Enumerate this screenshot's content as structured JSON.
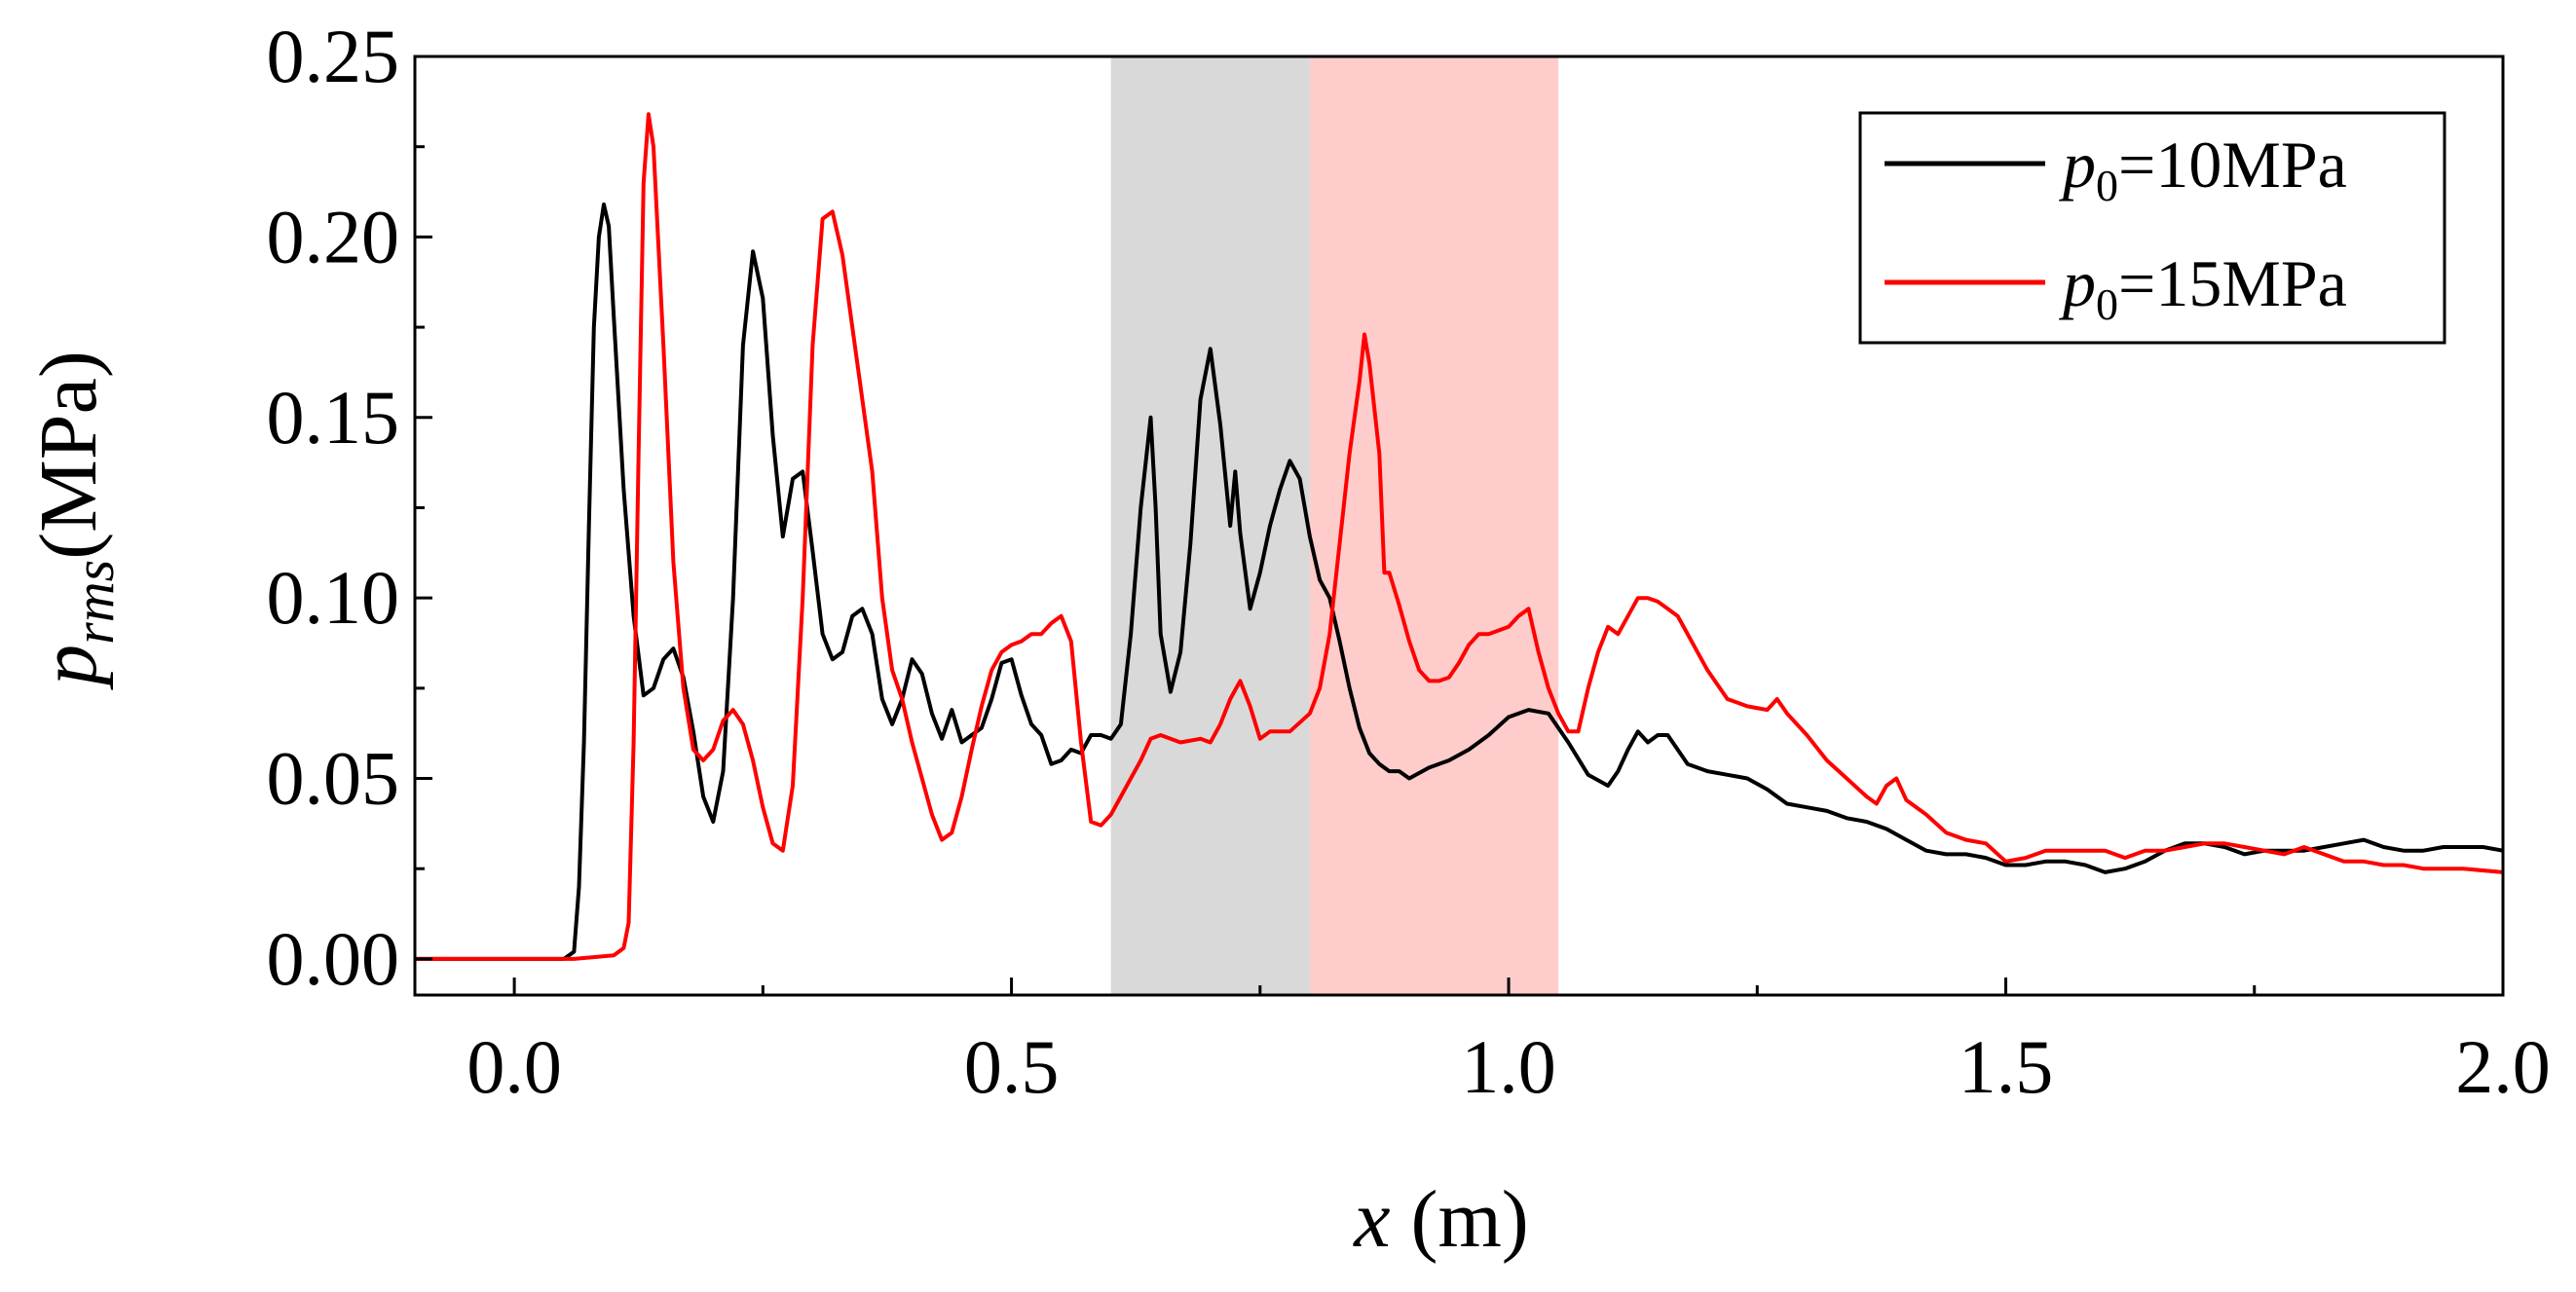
{
  "chart_data": {
    "type": "line",
    "title": "",
    "xlabel": {
      "var": "x",
      "unit": " (m)"
    },
    "ylabel": {
      "var": "p",
      "sub": "rms",
      "unit": "(MPa)"
    },
    "xlim": [
      -0.1,
      2.0
    ],
    "ylim": [
      -0.01,
      0.25
    ],
    "x_ticks": [
      0.0,
      0.5,
      1.0,
      1.5,
      2.0
    ],
    "x_tick_labels": [
      "0.0",
      "0.5",
      "1.0",
      "1.5",
      "2.0"
    ],
    "y_ticks": [
      0.0,
      0.05,
      0.1,
      0.15,
      0.2,
      0.25
    ],
    "y_tick_labels": [
      "0.00",
      "0.05",
      "0.10",
      "0.15",
      "0.20",
      "0.25"
    ],
    "grid": false,
    "legend_position": "top-right",
    "shaded_regions": [
      {
        "x_start": 0.6,
        "x_end": 0.8,
        "color": "#d9d9d9"
      },
      {
        "x_start": 0.8,
        "x_end": 1.05,
        "color": "#ffcccc"
      }
    ],
    "series": [
      {
        "name": "p0=10MPa",
        "legend": {
          "var": "p",
          "sub": "0",
          "rest": "=10MPa"
        },
        "color": "#000000",
        "points": [
          [
            -0.1,
            0
          ],
          [
            0.05,
            0
          ],
          [
            0.06,
            0.002
          ],
          [
            0.065,
            0.02
          ],
          [
            0.07,
            0.06
          ],
          [
            0.075,
            0.12
          ],
          [
            0.08,
            0.175
          ],
          [
            0.085,
            0.2
          ],
          [
            0.09,
            0.209
          ],
          [
            0.095,
            0.203
          ],
          [
            0.1,
            0.178
          ],
          [
            0.11,
            0.13
          ],
          [
            0.12,
            0.095
          ],
          [
            0.13,
            0.073
          ],
          [
            0.14,
            0.075
          ],
          [
            0.15,
            0.083
          ],
          [
            0.16,
            0.086
          ],
          [
            0.17,
            0.078
          ],
          [
            0.18,
            0.063
          ],
          [
            0.19,
            0.045
          ],
          [
            0.2,
            0.038
          ],
          [
            0.21,
            0.052
          ],
          [
            0.22,
            0.1
          ],
          [
            0.23,
            0.17
          ],
          [
            0.24,
            0.196
          ],
          [
            0.25,
            0.183
          ],
          [
            0.26,
            0.145
          ],
          [
            0.27,
            0.117
          ],
          [
            0.28,
            0.133
          ],
          [
            0.29,
            0.135
          ],
          [
            0.3,
            0.113
          ],
          [
            0.31,
            0.09
          ],
          [
            0.32,
            0.083
          ],
          [
            0.33,
            0.085
          ],
          [
            0.34,
            0.095
          ],
          [
            0.35,
            0.097
          ],
          [
            0.36,
            0.09
          ],
          [
            0.37,
            0.072
          ],
          [
            0.38,
            0.065
          ],
          [
            0.39,
            0.072
          ],
          [
            0.4,
            0.083
          ],
          [
            0.41,
            0.079
          ],
          [
            0.42,
            0.068
          ],
          [
            0.43,
            0.061
          ],
          [
            0.44,
            0.069
          ],
          [
            0.45,
            0.06
          ],
          [
            0.46,
            0.062
          ],
          [
            0.47,
            0.064
          ],
          [
            0.48,
            0.072
          ],
          [
            0.49,
            0.082
          ],
          [
            0.5,
            0.083
          ],
          [
            0.51,
            0.073
          ],
          [
            0.52,
            0.065
          ],
          [
            0.53,
            0.062
          ],
          [
            0.54,
            0.054
          ],
          [
            0.55,
            0.055
          ],
          [
            0.56,
            0.058
          ],
          [
            0.57,
            0.057
          ],
          [
            0.58,
            0.062
          ],
          [
            0.59,
            0.062
          ],
          [
            0.6,
            0.061
          ],
          [
            0.61,
            0.065
          ],
          [
            0.62,
            0.09
          ],
          [
            0.63,
            0.125
          ],
          [
            0.64,
            0.15
          ],
          [
            0.645,
            0.125
          ],
          [
            0.65,
            0.09
          ],
          [
            0.66,
            0.074
          ],
          [
            0.67,
            0.085
          ],
          [
            0.68,
            0.115
          ],
          [
            0.69,
            0.155
          ],
          [
            0.7,
            0.169
          ],
          [
            0.71,
            0.148
          ],
          [
            0.72,
            0.12
          ],
          [
            0.725,
            0.135
          ],
          [
            0.73,
            0.118
          ],
          [
            0.74,
            0.097
          ],
          [
            0.75,
            0.107
          ],
          [
            0.76,
            0.12
          ],
          [
            0.77,
            0.13
          ],
          [
            0.78,
            0.138
          ],
          [
            0.79,
            0.133
          ],
          [
            0.8,
            0.117
          ],
          [
            0.81,
            0.105
          ],
          [
            0.82,
            0.1
          ],
          [
            0.83,
            0.088
          ],
          [
            0.84,
            0.075
          ],
          [
            0.85,
            0.064
          ],
          [
            0.86,
            0.057
          ],
          [
            0.87,
            0.054
          ],
          [
            0.88,
            0.052
          ],
          [
            0.89,
            0.052
          ],
          [
            0.9,
            0.05
          ],
          [
            0.92,
            0.053
          ],
          [
            0.94,
            0.055
          ],
          [
            0.96,
            0.058
          ],
          [
            0.98,
            0.062
          ],
          [
            1.0,
            0.067
          ],
          [
            1.02,
            0.069
          ],
          [
            1.04,
            0.068
          ],
          [
            1.06,
            0.06
          ],
          [
            1.08,
            0.051
          ],
          [
            1.1,
            0.048
          ],
          [
            1.11,
            0.052
          ],
          [
            1.12,
            0.058
          ],
          [
            1.13,
            0.063
          ],
          [
            1.14,
            0.06
          ],
          [
            1.15,
            0.062
          ],
          [
            1.16,
            0.062
          ],
          [
            1.17,
            0.058
          ],
          [
            1.18,
            0.054
          ],
          [
            1.2,
            0.052
          ],
          [
            1.22,
            0.051
          ],
          [
            1.24,
            0.05
          ],
          [
            1.26,
            0.047
          ],
          [
            1.28,
            0.043
          ],
          [
            1.3,
            0.042
          ],
          [
            1.32,
            0.041
          ],
          [
            1.34,
            0.039
          ],
          [
            1.36,
            0.038
          ],
          [
            1.38,
            0.036
          ],
          [
            1.4,
            0.033
          ],
          [
            1.42,
            0.03
          ],
          [
            1.44,
            0.029
          ],
          [
            1.46,
            0.029
          ],
          [
            1.48,
            0.028
          ],
          [
            1.5,
            0.026
          ],
          [
            1.52,
            0.026
          ],
          [
            1.54,
            0.027
          ],
          [
            1.56,
            0.027
          ],
          [
            1.58,
            0.026
          ],
          [
            1.6,
            0.024
          ],
          [
            1.62,
            0.025
          ],
          [
            1.64,
            0.027
          ],
          [
            1.66,
            0.03
          ],
          [
            1.68,
            0.032
          ],
          [
            1.7,
            0.032
          ],
          [
            1.72,
            0.031
          ],
          [
            1.74,
            0.029
          ],
          [
            1.76,
            0.03
          ],
          [
            1.78,
            0.03
          ],
          [
            1.8,
            0.03
          ],
          [
            1.82,
            0.031
          ],
          [
            1.84,
            0.032
          ],
          [
            1.86,
            0.033
          ],
          [
            1.88,
            0.031
          ],
          [
            1.9,
            0.03
          ],
          [
            1.92,
            0.03
          ],
          [
            1.94,
            0.031
          ],
          [
            1.96,
            0.031
          ],
          [
            1.98,
            0.031
          ],
          [
            2.0,
            0.03
          ]
        ]
      },
      {
        "name": "p0=15MPa",
        "legend": {
          "var": "p",
          "sub": "0",
          "rest": "=15MPa"
        },
        "color": "#ff0000",
        "points": [
          [
            -0.1,
            0
          ],
          [
            0.06,
            0
          ],
          [
            0.1,
            0.001
          ],
          [
            0.11,
            0.003
          ],
          [
            0.115,
            0.01
          ],
          [
            0.12,
            0.06
          ],
          [
            0.125,
            0.14
          ],
          [
            0.13,
            0.215
          ],
          [
            0.135,
            0.234
          ],
          [
            0.14,
            0.225
          ],
          [
            0.15,
            0.17
          ],
          [
            0.16,
            0.11
          ],
          [
            0.17,
            0.075
          ],
          [
            0.18,
            0.058
          ],
          [
            0.19,
            0.055
          ],
          [
            0.2,
            0.058
          ],
          [
            0.21,
            0.066
          ],
          [
            0.22,
            0.069
          ],
          [
            0.23,
            0.065
          ],
          [
            0.24,
            0.055
          ],
          [
            0.25,
            0.042
          ],
          [
            0.26,
            0.032
          ],
          [
            0.27,
            0.03
          ],
          [
            0.28,
            0.048
          ],
          [
            0.29,
            0.1
          ],
          [
            0.3,
            0.17
          ],
          [
            0.31,
            0.205
          ],
          [
            0.32,
            0.207
          ],
          [
            0.33,
            0.195
          ],
          [
            0.34,
            0.175
          ],
          [
            0.35,
            0.155
          ],
          [
            0.36,
            0.135
          ],
          [
            0.37,
            0.1
          ],
          [
            0.38,
            0.08
          ],
          [
            0.39,
            0.072
          ],
          [
            0.4,
            0.06
          ],
          [
            0.41,
            0.05
          ],
          [
            0.42,
            0.04
          ],
          [
            0.43,
            0.033
          ],
          [
            0.44,
            0.035
          ],
          [
            0.45,
            0.045
          ],
          [
            0.46,
            0.058
          ],
          [
            0.47,
            0.07
          ],
          [
            0.48,
            0.08
          ],
          [
            0.49,
            0.085
          ],
          [
            0.5,
            0.087
          ],
          [
            0.51,
            0.088
          ],
          [
            0.52,
            0.09
          ],
          [
            0.53,
            0.09
          ],
          [
            0.54,
            0.093
          ],
          [
            0.55,
            0.095
          ],
          [
            0.56,
            0.088
          ],
          [
            0.57,
            0.06
          ],
          [
            0.58,
            0.038
          ],
          [
            0.59,
            0.037
          ],
          [
            0.6,
            0.04
          ],
          [
            0.61,
            0.045
          ],
          [
            0.62,
            0.05
          ],
          [
            0.63,
            0.055
          ],
          [
            0.64,
            0.061
          ],
          [
            0.65,
            0.062
          ],
          [
            0.67,
            0.06
          ],
          [
            0.69,
            0.061
          ],
          [
            0.7,
            0.06
          ],
          [
            0.71,
            0.065
          ],
          [
            0.72,
            0.072
          ],
          [
            0.73,
            0.077
          ],
          [
            0.74,
            0.07
          ],
          [
            0.75,
            0.061
          ],
          [
            0.76,
            0.063
          ],
          [
            0.78,
            0.063
          ],
          [
            0.8,
            0.068
          ],
          [
            0.81,
            0.075
          ],
          [
            0.82,
            0.09
          ],
          [
            0.83,
            0.115
          ],
          [
            0.84,
            0.14
          ],
          [
            0.85,
            0.16
          ],
          [
            0.855,
            0.173
          ],
          [
            0.86,
            0.165
          ],
          [
            0.87,
            0.14
          ],
          [
            0.875,
            0.107
          ],
          [
            0.88,
            0.107
          ],
          [
            0.89,
            0.098
          ],
          [
            0.9,
            0.088
          ],
          [
            0.91,
            0.08
          ],
          [
            0.92,
            0.077
          ],
          [
            0.93,
            0.077
          ],
          [
            0.94,
            0.078
          ],
          [
            0.95,
            0.082
          ],
          [
            0.96,
            0.087
          ],
          [
            0.97,
            0.09
          ],
          [
            0.98,
            0.09
          ],
          [
            0.99,
            0.091
          ],
          [
            1.0,
            0.092
          ],
          [
            1.01,
            0.095
          ],
          [
            1.02,
            0.097
          ],
          [
            1.03,
            0.085
          ],
          [
            1.04,
            0.075
          ],
          [
            1.05,
            0.068
          ],
          [
            1.06,
            0.063
          ],
          [
            1.07,
            0.063
          ],
          [
            1.08,
            0.075
          ],
          [
            1.09,
            0.085
          ],
          [
            1.1,
            0.092
          ],
          [
            1.11,
            0.09
          ],
          [
            1.12,
            0.095
          ],
          [
            1.13,
            0.1
          ],
          [
            1.14,
            0.1
          ],
          [
            1.15,
            0.099
          ],
          [
            1.16,
            0.097
          ],
          [
            1.17,
            0.095
          ],
          [
            1.18,
            0.09
          ],
          [
            1.19,
            0.085
          ],
          [
            1.2,
            0.08
          ],
          [
            1.22,
            0.072
          ],
          [
            1.24,
            0.07
          ],
          [
            1.26,
            0.069
          ],
          [
            1.27,
            0.072
          ],
          [
            1.28,
            0.068
          ],
          [
            1.3,
            0.062
          ],
          [
            1.32,
            0.055
          ],
          [
            1.34,
            0.05
          ],
          [
            1.36,
            0.045
          ],
          [
            1.37,
            0.043
          ],
          [
            1.38,
            0.048
          ],
          [
            1.39,
            0.05
          ],
          [
            1.4,
            0.044
          ],
          [
            1.42,
            0.04
          ],
          [
            1.44,
            0.035
          ],
          [
            1.46,
            0.033
          ],
          [
            1.48,
            0.032
          ],
          [
            1.5,
            0.027
          ],
          [
            1.52,
            0.028
          ],
          [
            1.54,
            0.03
          ],
          [
            1.56,
            0.03
          ],
          [
            1.58,
            0.03
          ],
          [
            1.6,
            0.03
          ],
          [
            1.62,
            0.028
          ],
          [
            1.64,
            0.03
          ],
          [
            1.66,
            0.03
          ],
          [
            1.68,
            0.031
          ],
          [
            1.7,
            0.032
          ],
          [
            1.72,
            0.032
          ],
          [
            1.74,
            0.031
          ],
          [
            1.76,
            0.03
          ],
          [
            1.78,
            0.029
          ],
          [
            1.8,
            0.031
          ],
          [
            1.82,
            0.029
          ],
          [
            1.84,
            0.027
          ],
          [
            1.86,
            0.027
          ],
          [
            1.88,
            0.026
          ],
          [
            1.9,
            0.026
          ],
          [
            1.92,
            0.025
          ],
          [
            1.96,
            0.025
          ],
          [
            2.0,
            0.024
          ]
        ]
      }
    ]
  }
}
